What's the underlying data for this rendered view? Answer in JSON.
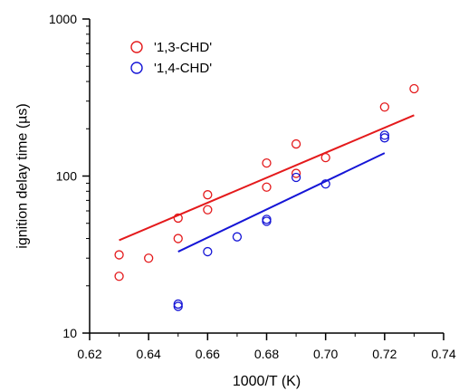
{
  "chart_data": {
    "type": "scatter",
    "xlabel": "1000/T (K)",
    "ylabel": "ignition delay time (µs)",
    "xlim": [
      0.62,
      0.74
    ],
    "ylim": [
      10,
      1000
    ],
    "y_scale": "log",
    "grid": false,
    "legend_position": "top-left",
    "x_ticks": [
      0.62,
      0.64,
      0.66,
      0.68,
      0.7,
      0.72,
      0.74
    ],
    "x_tick_labels": [
      "0.62",
      "0.64",
      "0.66",
      "0.68",
      "0.70",
      "0.72",
      "0.74"
    ],
    "y_ticks": [
      10,
      100,
      1000
    ],
    "y_tick_labels": [
      "10",
      "100",
      "1000"
    ],
    "series": [
      {
        "name": "'1,3-CHD'",
        "color": "#e41a1c",
        "x": [
          0.63,
          0.63,
          0.64,
          0.65,
          0.65,
          0.66,
          0.66,
          0.68,
          0.68,
          0.69,
          0.69,
          0.7,
          0.72,
          0.73
        ],
        "y": [
          23,
          31.5,
          30,
          40,
          54,
          61,
          76,
          85,
          121,
          104,
          160,
          131,
          275,
          360
        ],
        "fit": {
          "x": [
            0.63,
            0.73
          ],
          "y": [
            39,
            244
          ]
        }
      },
      {
        "name": "'1,4-CHD'",
        "color": "#1515d6",
        "x": [
          0.65,
          0.65,
          0.66,
          0.67,
          0.68,
          0.68,
          0.69,
          0.7,
          0.72,
          0.72
        ],
        "y": [
          14.8,
          15.3,
          33,
          41,
          51.5,
          53,
          98,
          89,
          175,
          182
        ],
        "fit": {
          "x": [
            0.65,
            0.72
          ],
          "y": [
            33,
            140
          ]
        }
      }
    ]
  }
}
